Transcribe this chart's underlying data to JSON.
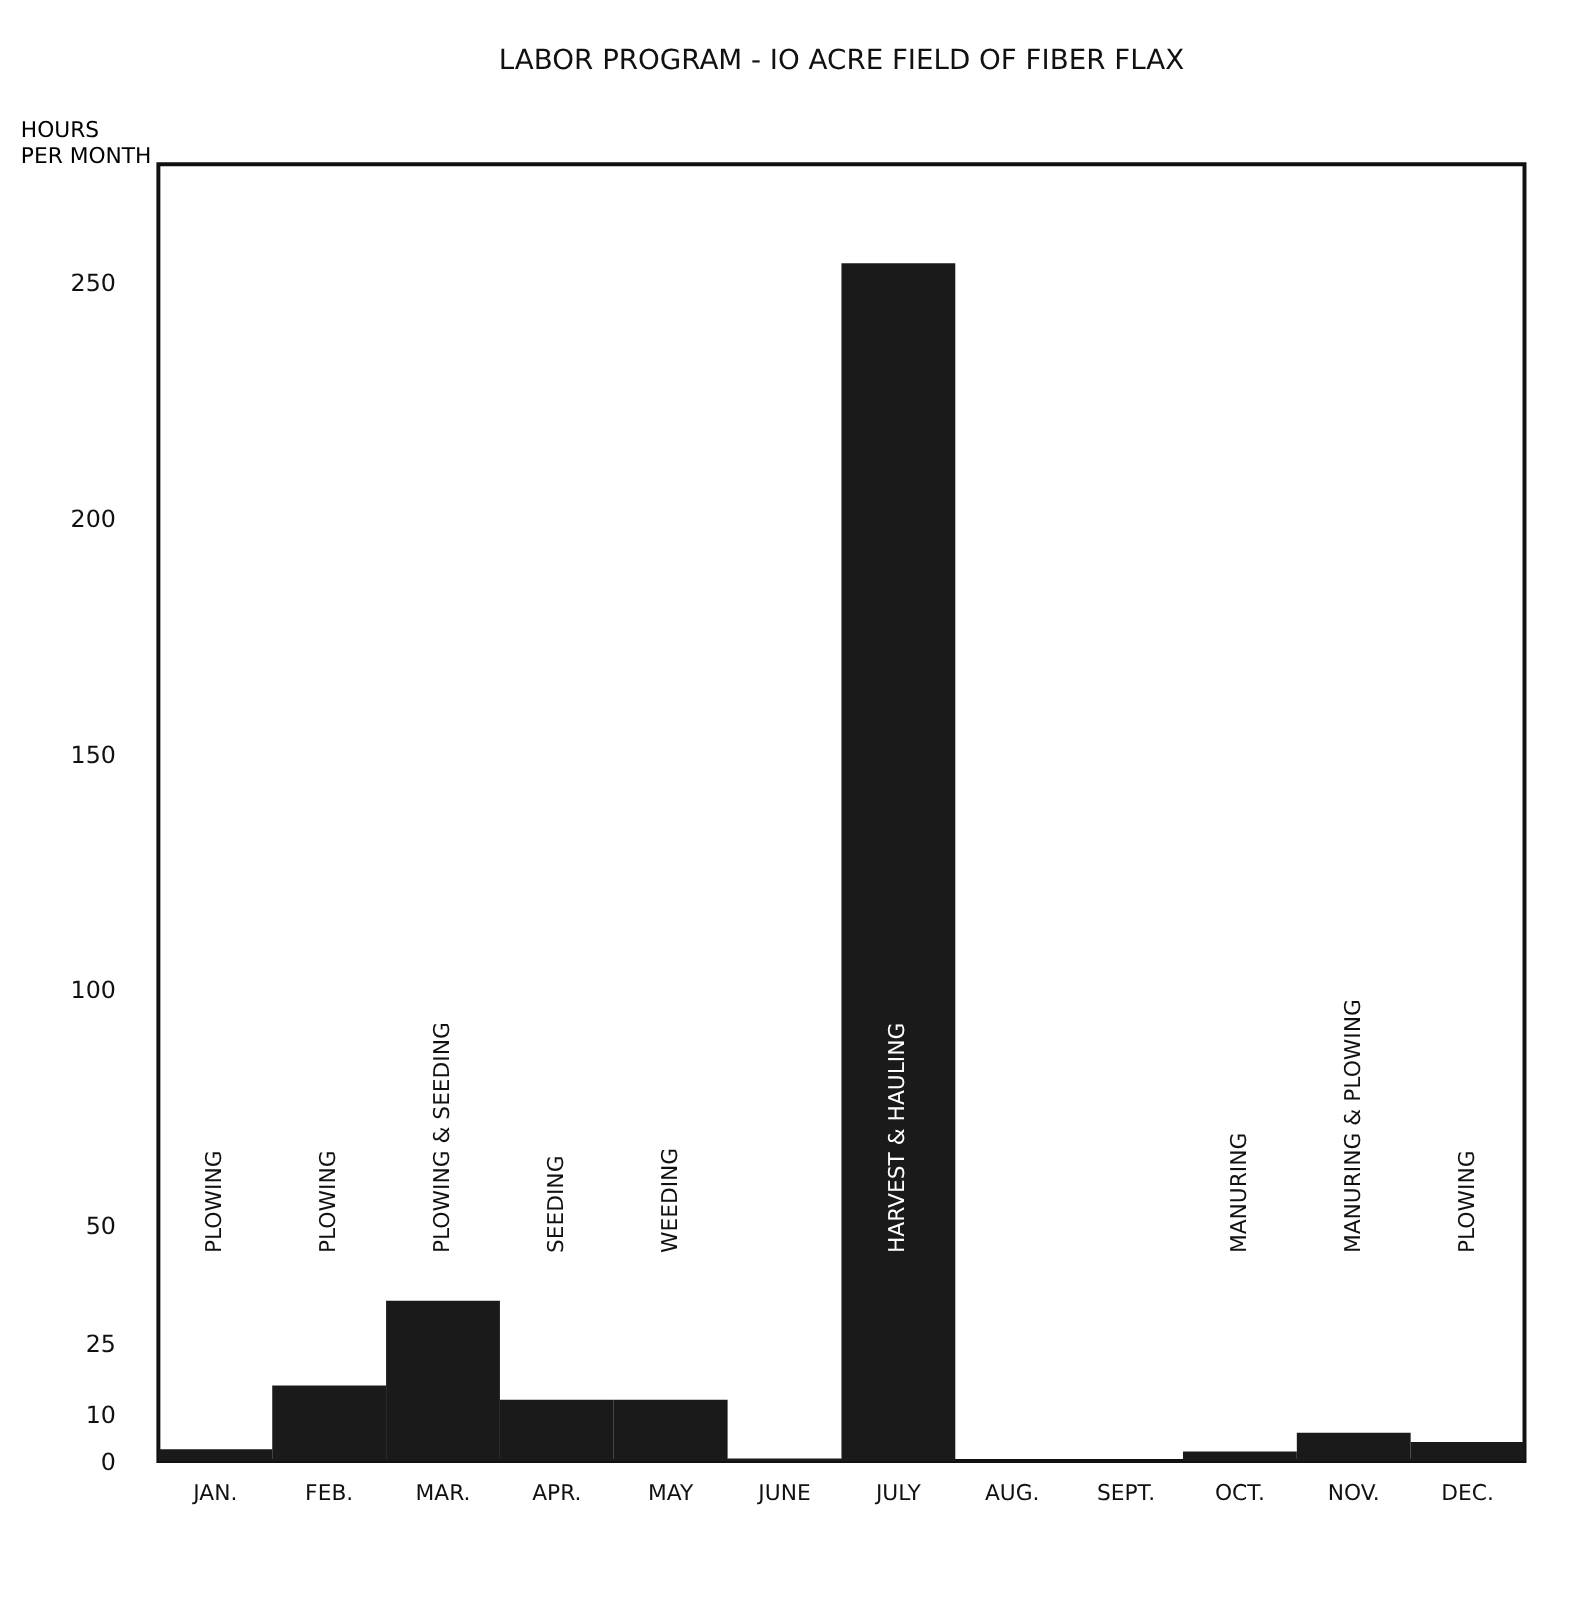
{
  "chart_data": {
    "type": "bar",
    "title": "LABOR PROGRAM - IO ACRE FIELD OF FIBER FLAX",
    "ylabel": "HOURS PER MONTH",
    "categories": [
      "JAN.",
      "FEB.",
      "MAR.",
      "APR.",
      "MAY",
      "JUNE",
      "JULY",
      "AUG.",
      "SEPT.",
      "OCT.",
      "NOV.",
      "DEC."
    ],
    "values": [
      2.5,
      16,
      34,
      13,
      13,
      0.5,
      254,
      0,
      0,
      2,
      6,
      4
    ],
    "color": "#1a1a1a",
    "ylim": [
      0,
      275
    ],
    "yticks": [
      0,
      10,
      25,
      50,
      100,
      150,
      200,
      250
    ],
    "grid": false,
    "annotations": [
      "PLOWING",
      "PLOWING",
      "PLOWING & SEEDING",
      "SEEDING",
      "WEEDING",
      "HARVEST & HAULING",
      "MANURING",
      "MANURING & PLOWING",
      "PLOWING"
    ]
  }
}
